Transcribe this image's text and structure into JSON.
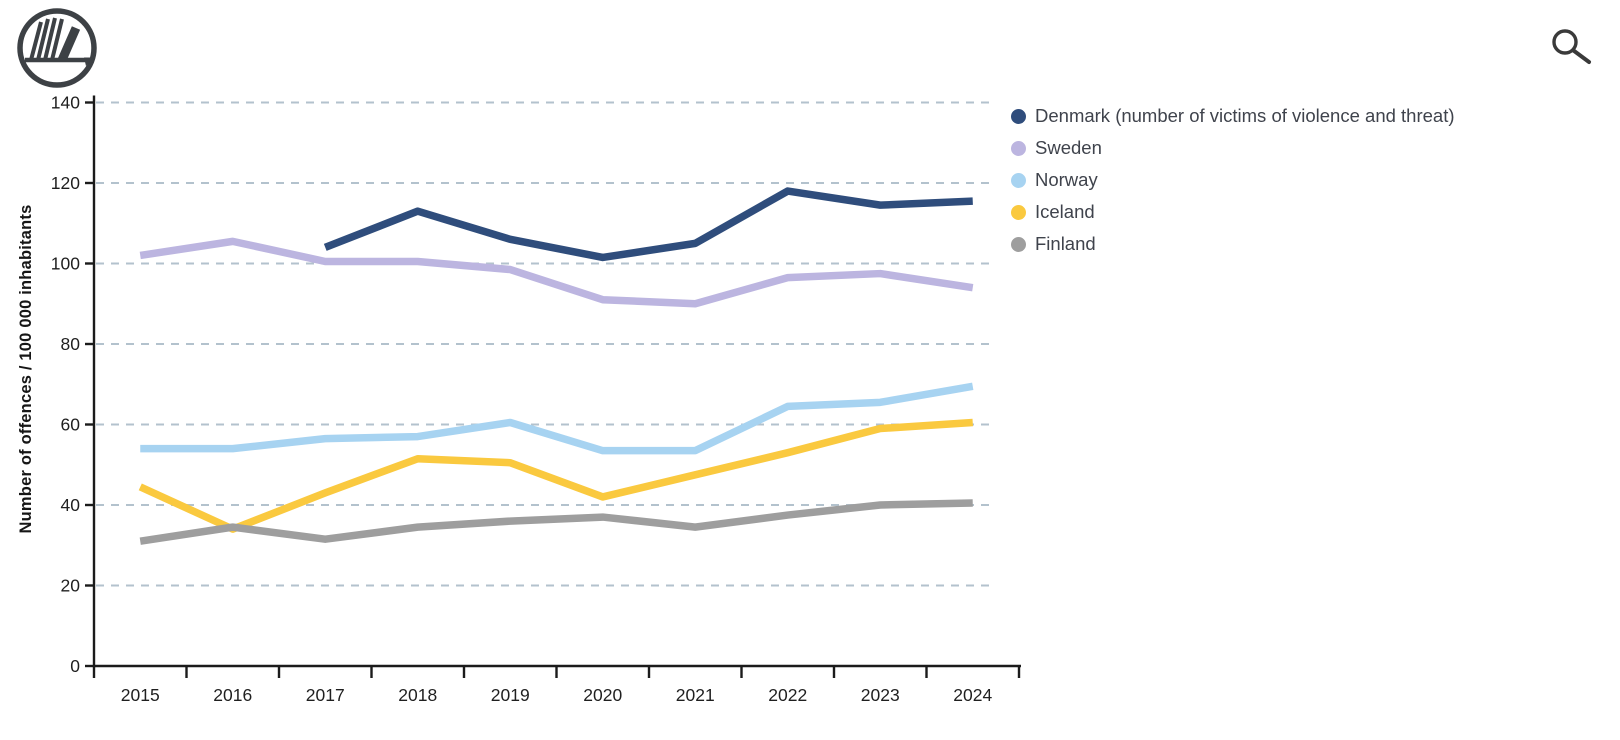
{
  "header": {
    "logo_icon": "nordic-council-swan-logo",
    "search_icon": "search-magnifier"
  },
  "chart_data": {
    "type": "line",
    "x": [
      "2015",
      "2016",
      "2017",
      "2018",
      "2019",
      "2020",
      "2021",
      "2022",
      "2023",
      "2024"
    ],
    "ylabel": "Number of offences / 100 000 inhabitants",
    "ylim": [
      0,
      140
    ],
    "yticks": [
      0,
      20,
      40,
      60,
      80,
      100,
      120,
      140
    ],
    "grid": "horizontal-dashed",
    "grid_color": "#b3c2cd",
    "axis_color": "#1b1b1b",
    "legend_position": "right",
    "series": [
      {
        "name": "Denmark (number of victims of violence and threat)",
        "color": "#2f4d7c",
        "values": [
          null,
          null,
          104,
          113,
          106,
          101.5,
          105,
          118,
          114.5,
          115.5
        ]
      },
      {
        "name": "Sweden",
        "color": "#bcb5e0",
        "values": [
          102,
          105.5,
          100.5,
          100.5,
          98.5,
          91,
          90,
          96.5,
          97.5,
          94
        ]
      },
      {
        "name": "Norway",
        "color": "#a7d3f1",
        "values": [
          54,
          54,
          56.5,
          57,
          60.5,
          53.5,
          53.5,
          64.5,
          65.5,
          69.5
        ]
      },
      {
        "name": "Iceland",
        "color": "#fac93f",
        "values": [
          44.5,
          34,
          43,
          51.5,
          50.5,
          42,
          47.5,
          53,
          59,
          60.5
        ]
      },
      {
        "name": "Finland",
        "color": "#9e9e9e",
        "values": [
          31,
          34.5,
          31.5,
          34.5,
          36,
          37,
          34.5,
          37.5,
          40,
          40.5
        ]
      }
    ]
  }
}
